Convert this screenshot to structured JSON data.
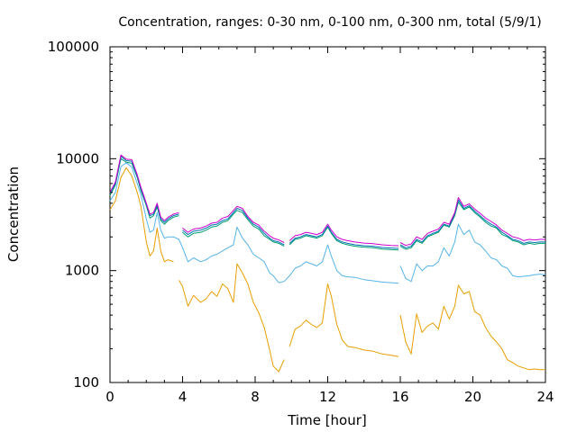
{
  "chart_data": {
    "type": "line",
    "title": "Concentration, ranges: 0-30 nm, 0-100 nm, 0-300 nm, total (5/9/1)",
    "xlabel": "Time [hour]",
    "ylabel": "Concentration",
    "xlim": [
      0,
      24
    ],
    "ylim": [
      100,
      100000
    ],
    "yscale": "log",
    "xticks": [
      "0",
      "4",
      "8",
      "12",
      "16",
      "20",
      "24"
    ],
    "yticks": [
      "100",
      "1000",
      "10000",
      "100000"
    ],
    "grid": false,
    "legend": "none",
    "series": [
      {
        "color": "#e69f00",
        "x": [
          0,
          0.3,
          0.6,
          0.9,
          1.2,
          1.5,
          1.7,
          2.0,
          2.2,
          2.4,
          2.6,
          2.8,
          3.0,
          3.2,
          3.5,
          null,
          3.8,
          4.0,
          4.3,
          4.6,
          5.0,
          5.3,
          5.6,
          5.9,
          6.2,
          6.5,
          6.8,
          7.0,
          7.3,
          7.6,
          7.9,
          8.2,
          8.5,
          8.8,
          9.0,
          9.3,
          9.6,
          null,
          9.9,
          10.2,
          10.5,
          10.8,
          11.1,
          11.4,
          11.7,
          12.0,
          12.2,
          12.5,
          12.8,
          13.1,
          13.5,
          14.0,
          14.5,
          15.0,
          15.5,
          15.9,
          null,
          16.0,
          16.3,
          16.6,
          16.9,
          17.2,
          17.5,
          17.8,
          18.1,
          18.4,
          18.7,
          19.0,
          19.2,
          19.5,
          19.8,
          20.1,
          20.4,
          20.7,
          21.0,
          21.3,
          21.6,
          21.9,
          22.2,
          22.5,
          22.8,
          23.1,
          23.4,
          23.7,
          24.0
        ],
        "y": [
          3500,
          4200,
          6800,
          8300,
          7000,
          5000,
          3800,
          1800,
          1350,
          1500,
          2400,
          1500,
          1200,
          1250,
          1200,
          null,
          820,
          720,
          480,
          600,
          520,
          560,
          650,
          590,
          760,
          690,
          520,
          1150,
          950,
          760,
          520,
          420,
          310,
          195,
          140,
          125,
          160,
          null,
          210,
          300,
          320,
          360,
          330,
          310,
          340,
          760,
          590,
          330,
          240,
          210,
          205,
          195,
          190,
          180,
          175,
          170,
          null,
          400,
          230,
          180,
          410,
          280,
          320,
          340,
          300,
          480,
          370,
          480,
          740,
          620,
          650,
          430,
          400,
          310,
          260,
          230,
          200,
          160,
          150,
          140,
          135,
          130,
          132,
          130,
          130
        ]
      },
      {
        "color": "#56b4e9",
        "x": [
          0,
          0.3,
          0.6,
          0.9,
          1.2,
          1.5,
          1.7,
          2.0,
          2.2,
          2.4,
          2.6,
          2.8,
          3.0,
          3.2,
          3.5,
          3.8,
          4.0,
          4.3,
          4.6,
          5.0,
          5.3,
          5.6,
          5.9,
          6.2,
          6.5,
          6.8,
          7.0,
          7.3,
          7.6,
          7.9,
          8.2,
          8.5,
          8.8,
          9.0,
          9.3,
          9.6,
          9.9,
          10.2,
          10.5,
          10.8,
          11.1,
          11.4,
          11.7,
          12.0,
          12.2,
          12.5,
          12.8,
          13.1,
          13.5,
          14.0,
          14.5,
          15.0,
          15.5,
          15.9,
          null,
          16.0,
          16.3,
          16.6,
          16.9,
          17.2,
          17.5,
          17.8,
          18.1,
          18.4,
          18.7,
          19.0,
          19.2,
          19.5,
          19.8,
          20.1,
          20.4,
          20.7,
          21.0,
          21.3,
          21.6,
          21.9,
          22.2,
          22.5,
          22.8,
          23.1,
          23.4,
          23.7,
          24.0
        ],
        "y": [
          4200,
          5000,
          8500,
          9200,
          8400,
          6000,
          4800,
          2900,
          2200,
          2300,
          3300,
          2300,
          1950,
          2000,
          2000,
          1900,
          1600,
          1200,
          1300,
          1200,
          1250,
          1350,
          1400,
          1500,
          1600,
          1700,
          2450,
          1950,
          1700,
          1400,
          1300,
          1200,
          950,
          900,
          780,
          800,
          900,
          1050,
          1100,
          1200,
          1150,
          1100,
          1200,
          1700,
          1350,
          1000,
          900,
          880,
          870,
          830,
          810,
          790,
          780,
          770,
          null,
          1100,
          850,
          800,
          1150,
          1000,
          1100,
          1100,
          1200,
          1600,
          1350,
          1800,
          2600,
          2100,
          2300,
          1800,
          1700,
          1500,
          1300,
          1250,
          1100,
          1050,
          900,
          880,
          890,
          900,
          920,
          930,
          920
        ]
      },
      {
        "color": "#009e73",
        "x": [
          0,
          0.3,
          0.6,
          0.9,
          1.2,
          1.5,
          1.7,
          2.0,
          2.2,
          2.4,
          2.6,
          2.8,
          3.0,
          3.2,
          3.5,
          3.8,
          null,
          4.0,
          4.3,
          4.6,
          5.0,
          5.3,
          5.6,
          5.9,
          6.2,
          6.5,
          6.8,
          7.0,
          7.3,
          7.6,
          7.9,
          8.2,
          8.5,
          8.8,
          9.0,
          9.3,
          9.6,
          null,
          9.9,
          10.2,
          10.5,
          10.8,
          11.1,
          11.4,
          11.7,
          12.0,
          12.2,
          12.5,
          12.8,
          13.1,
          13.5,
          14.0,
          14.5,
          15.0,
          15.5,
          15.9,
          null,
          16.0,
          16.3,
          16.6,
          16.9,
          17.2,
          17.5,
          17.8,
          18.1,
          18.4,
          18.7,
          19.0,
          19.2,
          19.5,
          19.8,
          20.1,
          20.4,
          20.7,
          21.0,
          21.3,
          21.6,
          21.9,
          22.2,
          22.5,
          22.8,
          23.1,
          23.4,
          23.7,
          24.0
        ],
        "y": [
          4700,
          5800,
          10000,
          9300,
          9100,
          6800,
          5200,
          3800,
          2950,
          3100,
          3700,
          2800,
          2600,
          2800,
          3000,
          3100,
          null,
          2200,
          2000,
          2150,
          2200,
          2300,
          2450,
          2500,
          2700,
          2800,
          3200,
          3450,
          3300,
          2850,
          2500,
          2350,
          2050,
          1900,
          1800,
          1750,
          1650,
          null,
          1700,
          1900,
          1950,
          2050,
          2000,
          1950,
          2050,
          2450,
          2150,
          1850,
          1750,
          1700,
          1650,
          1620,
          1600,
          1560,
          1540,
          1530,
          null,
          1650,
          1550,
          1600,
          1850,
          1750,
          2000,
          2100,
          2200,
          2550,
          2450,
          3100,
          4100,
          3500,
          3700,
          3300,
          3000,
          2700,
          2500,
          2400,
          2100,
          2000,
          1850,
          1800,
          1700,
          1750,
          1720,
          1750,
          1750
        ]
      },
      {
        "color": "#0072b2",
        "x": [
          0,
          0.3,
          0.6,
          0.9,
          1.2,
          1.5,
          1.7,
          2.0,
          2.2,
          2.4,
          2.6,
          2.8,
          3.0,
          3.2,
          3.5,
          3.8,
          null,
          4.0,
          4.3,
          4.6,
          5.0,
          5.3,
          5.6,
          5.9,
          6.2,
          6.5,
          6.8,
          7.0,
          7.3,
          7.6,
          7.9,
          8.2,
          8.5,
          8.8,
          9.0,
          9.3,
          9.6,
          null,
          9.9,
          10.2,
          10.5,
          10.8,
          11.1,
          11.4,
          11.7,
          12.0,
          12.2,
          12.5,
          12.8,
          13.1,
          13.5,
          14.0,
          14.5,
          15.0,
          15.5,
          15.9,
          null,
          16.0,
          16.3,
          16.6,
          16.9,
          17.2,
          17.5,
          17.8,
          18.1,
          18.4,
          18.7,
          19.0,
          19.2,
          19.5,
          19.8,
          20.1,
          20.4,
          20.7,
          21.0,
          21.3,
          21.6,
          21.9,
          22.2,
          22.5,
          22.8,
          23.1,
          23.4,
          23.7,
          24.0
        ],
        "y": [
          4900,
          6000,
          10500,
          9600,
          9500,
          7000,
          5400,
          3900,
          3100,
          3200,
          3850,
          2900,
          2700,
          2900,
          3100,
          3200,
          null,
          2300,
          2100,
          2250,
          2300,
          2400,
          2550,
          2600,
          2800,
          2900,
          3300,
          3600,
          3450,
          2950,
          2600,
          2450,
          2150,
          1950,
          1850,
          1800,
          1700,
          null,
          1750,
          1950,
          2000,
          2100,
          2050,
          2000,
          2100,
          2500,
          2200,
          1900,
          1800,
          1750,
          1700,
          1670,
          1650,
          1610,
          1590,
          1580,
          null,
          1700,
          1600,
          1650,
          1900,
          1800,
          2050,
          2150,
          2250,
          2600,
          2500,
          3200,
          4300,
          3600,
          3800,
          3400,
          3100,
          2800,
          2600,
          2450,
          2200,
          2050,
          1900,
          1850,
          1750,
          1800,
          1780,
          1800,
          1800
        ]
      },
      {
        "color": "#cc00cc",
        "x": [
          0,
          0.3,
          0.6,
          0.9,
          1.2,
          1.5,
          1.7,
          2.0,
          2.2,
          2.4,
          2.6,
          2.8,
          3.0,
          3.2,
          3.5,
          3.8,
          null,
          4.0,
          4.3,
          4.6,
          5.0,
          5.3,
          5.6,
          5.9,
          6.2,
          6.5,
          6.8,
          7.0,
          7.3,
          7.6,
          7.9,
          8.2,
          8.5,
          8.8,
          9.0,
          9.3,
          9.6,
          null,
          9.9,
          10.2,
          10.5,
          10.8,
          11.1,
          11.4,
          11.7,
          12.0,
          12.2,
          12.5,
          12.8,
          13.1,
          13.5,
          14.0,
          14.5,
          15.0,
          15.5,
          15.9,
          null,
          16.0,
          16.3,
          16.6,
          16.9,
          17.2,
          17.5,
          17.8,
          18.1,
          18.4,
          18.7,
          19.0,
          19.2,
          19.5,
          19.8,
          20.1,
          20.4,
          20.7,
          21.0,
          21.3,
          21.6,
          21.9,
          22.2,
          22.5,
          22.8,
          23.1,
          23.4,
          23.7,
          24.0
        ],
        "y": [
          5000,
          6200,
          10800,
          9900,
          9800,
          7200,
          5600,
          4000,
          3200,
          3300,
          4000,
          3000,
          2800,
          3000,
          3200,
          3300,
          null,
          2400,
          2200,
          2350,
          2400,
          2500,
          2650,
          2700,
          2950,
          3050,
          3450,
          3750,
          3600,
          3050,
          2700,
          2550,
          2250,
          2050,
          1950,
          1880,
          1780,
          null,
          1850,
          2050,
          2100,
          2200,
          2150,
          2100,
          2200,
          2600,
          2300,
          2000,
          1900,
          1850,
          1800,
          1760,
          1740,
          1700,
          1680,
          1670,
          null,
          1780,
          1680,
          1730,
          2000,
          1900,
          2150,
          2250,
          2350,
          2700,
          2600,
          3300,
          4500,
          3750,
          3950,
          3550,
          3250,
          2950,
          2750,
          2550,
          2300,
          2150,
          2000,
          1950,
          1850,
          1900,
          1880,
          1900,
          1900
        ]
      }
    ]
  }
}
